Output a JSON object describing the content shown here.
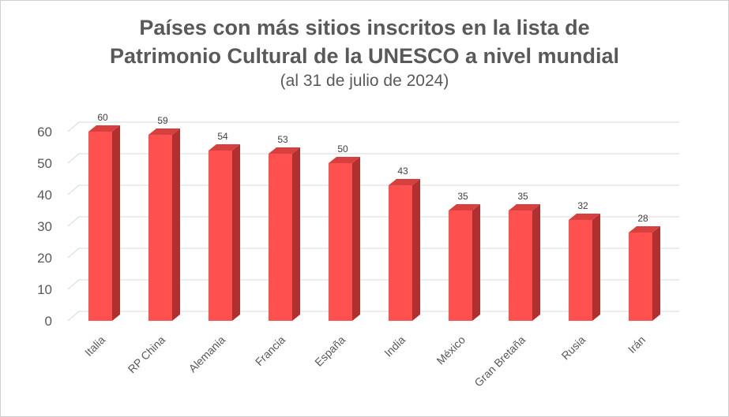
{
  "chart_data": {
    "type": "bar",
    "title_line1": "Países con más sitios inscritos en la lista de",
    "title_line2": "Patrimonio Cultural de la UNESCO a nivel mundial",
    "subtitle": "(al 31 de julio de 2024)",
    "categories": [
      "Italia",
      "RP China",
      "Alemania",
      "Francia",
      "España",
      "India",
      "México",
      "Gran Bretaña",
      "Rusia",
      "Irán"
    ],
    "values": [
      60,
      59,
      54,
      53,
      50,
      43,
      35,
      35,
      32,
      28
    ],
    "xlabel": "",
    "ylabel": "",
    "ylim": [
      0,
      60
    ],
    "yticks": [
      0,
      10,
      20,
      30,
      40,
      50,
      60
    ],
    "grid": true,
    "legend": "none",
    "bar_style": "3d-column",
    "colors": {
      "bar_front": "#ff5050",
      "bar_side": "#b03030",
      "bar_top": "#d84040",
      "grid": "#d9d9d9",
      "text": "#595959"
    }
  }
}
